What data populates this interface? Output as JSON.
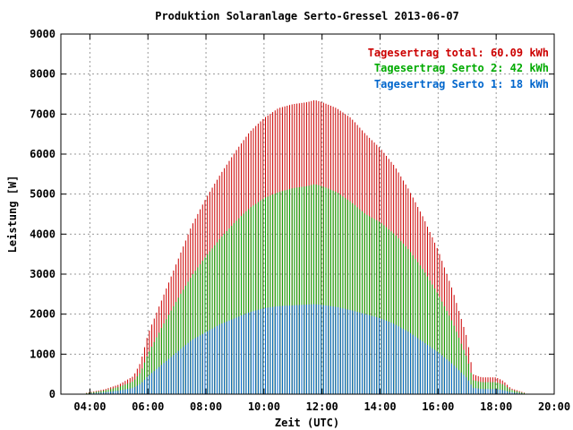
{
  "chart_data": {
    "type": "bar",
    "title": "Produktion Solaranlage Serto-Gressel 2013-06-07",
    "xlabel": "Zeit (UTC)",
    "ylabel": "Leistung [W]",
    "ylim": [
      0,
      9000
    ],
    "xlim": [
      "03:00",
      "20:00"
    ],
    "y_ticks": [
      "0",
      "1000",
      "2000",
      "3000",
      "4000",
      "5000",
      "6000",
      "7000",
      "8000",
      "9000"
    ],
    "x_ticks": [
      "04:00",
      "06:00",
      "08:00",
      "10:00",
      "12:00",
      "14:00",
      "16:00",
      "18:00",
      "20:00"
    ],
    "grid": true,
    "legend_position": "top-right",
    "stacked": true,
    "series": [
      {
        "name": "Tagesertrag total: 60.09 kWh",
        "color": "#cc0000",
        "values": [
          [
            3.8,
            20
          ],
          [
            4.0,
            50
          ],
          [
            4.5,
            120
          ],
          [
            5.0,
            240
          ],
          [
            5.5,
            450
          ],
          [
            5.75,
            800
          ],
          [
            6.0,
            1500
          ],
          [
            6.5,
            2400
          ],
          [
            7.0,
            3300
          ],
          [
            7.5,
            4200
          ],
          [
            8.0,
            4900
          ],
          [
            8.5,
            5500
          ],
          [
            9.0,
            6050
          ],
          [
            9.5,
            6550
          ],
          [
            10.0,
            6900
          ],
          [
            10.5,
            7150
          ],
          [
            11.0,
            7250
          ],
          [
            11.5,
            7300
          ],
          [
            11.75,
            7350
          ],
          [
            12.0,
            7300
          ],
          [
            12.5,
            7150
          ],
          [
            13.0,
            6900
          ],
          [
            13.5,
            6500
          ],
          [
            14.0,
            6150
          ],
          [
            14.5,
            5700
          ],
          [
            15.0,
            5100
          ],
          [
            15.5,
            4400
          ],
          [
            16.0,
            3600
          ],
          [
            16.5,
            2600
          ],
          [
            17.0,
            1400
          ],
          [
            17.2,
            500
          ],
          [
            17.5,
            420
          ],
          [
            18.0,
            420
          ],
          [
            18.25,
            330
          ],
          [
            18.5,
            150
          ],
          [
            19.0,
            30
          ]
        ]
      },
      {
        "name": "Tagesertrag Serto 2: 42 kWh",
        "color": "#00aa00",
        "values": [
          [
            3.8,
            15
          ],
          [
            4.0,
            35
          ],
          [
            4.5,
            90
          ],
          [
            5.0,
            180
          ],
          [
            5.5,
            320
          ],
          [
            5.75,
            550
          ],
          [
            6.0,
            1000
          ],
          [
            6.5,
            1700
          ],
          [
            7.0,
            2350
          ],
          [
            7.5,
            2950
          ],
          [
            8.0,
            3450
          ],
          [
            8.5,
            3900
          ],
          [
            9.0,
            4300
          ],
          [
            9.5,
            4650
          ],
          [
            10.0,
            4900
          ],
          [
            10.5,
            5050
          ],
          [
            11.0,
            5150
          ],
          [
            11.5,
            5200
          ],
          [
            11.75,
            5250
          ],
          [
            12.0,
            5200
          ],
          [
            12.5,
            5050
          ],
          [
            13.0,
            4800
          ],
          [
            13.5,
            4500
          ],
          [
            14.0,
            4300
          ],
          [
            14.5,
            4000
          ],
          [
            15.0,
            3600
          ],
          [
            15.5,
            3100
          ],
          [
            16.0,
            2500
          ],
          [
            16.5,
            1800
          ],
          [
            17.0,
            900
          ],
          [
            17.2,
            350
          ],
          [
            17.5,
            300
          ],
          [
            18.0,
            300
          ],
          [
            18.25,
            240
          ],
          [
            18.5,
            110
          ],
          [
            19.0,
            20
          ]
        ]
      },
      {
        "name": "Tagesertrag Serto 1: 18 kWh",
        "color": "#0066cc",
        "values": [
          [
            3.8,
            8
          ],
          [
            4.0,
            18
          ],
          [
            4.5,
            45
          ],
          [
            5.0,
            90
          ],
          [
            5.5,
            160
          ],
          [
            5.75,
            260
          ],
          [
            6.0,
            450
          ],
          [
            6.5,
            750
          ],
          [
            7.0,
            1050
          ],
          [
            7.5,
            1350
          ],
          [
            8.0,
            1550
          ],
          [
            8.5,
            1750
          ],
          [
            9.0,
            1900
          ],
          [
            9.5,
            2050
          ],
          [
            10.0,
            2150
          ],
          [
            10.5,
            2200
          ],
          [
            11.0,
            2220
          ],
          [
            11.5,
            2240
          ],
          [
            11.75,
            2250
          ],
          [
            12.0,
            2230
          ],
          [
            12.5,
            2180
          ],
          [
            13.0,
            2100
          ],
          [
            13.5,
            2000
          ],
          [
            14.0,
            1900
          ],
          [
            14.5,
            1750
          ],
          [
            15.0,
            1550
          ],
          [
            15.5,
            1300
          ],
          [
            16.0,
            1050
          ],
          [
            16.5,
            750
          ],
          [
            17.0,
            400
          ],
          [
            17.2,
            160
          ],
          [
            17.5,
            130
          ],
          [
            18.0,
            130
          ],
          [
            18.25,
            100
          ],
          [
            18.5,
            50
          ],
          [
            19.0,
            8
          ]
        ]
      }
    ]
  }
}
